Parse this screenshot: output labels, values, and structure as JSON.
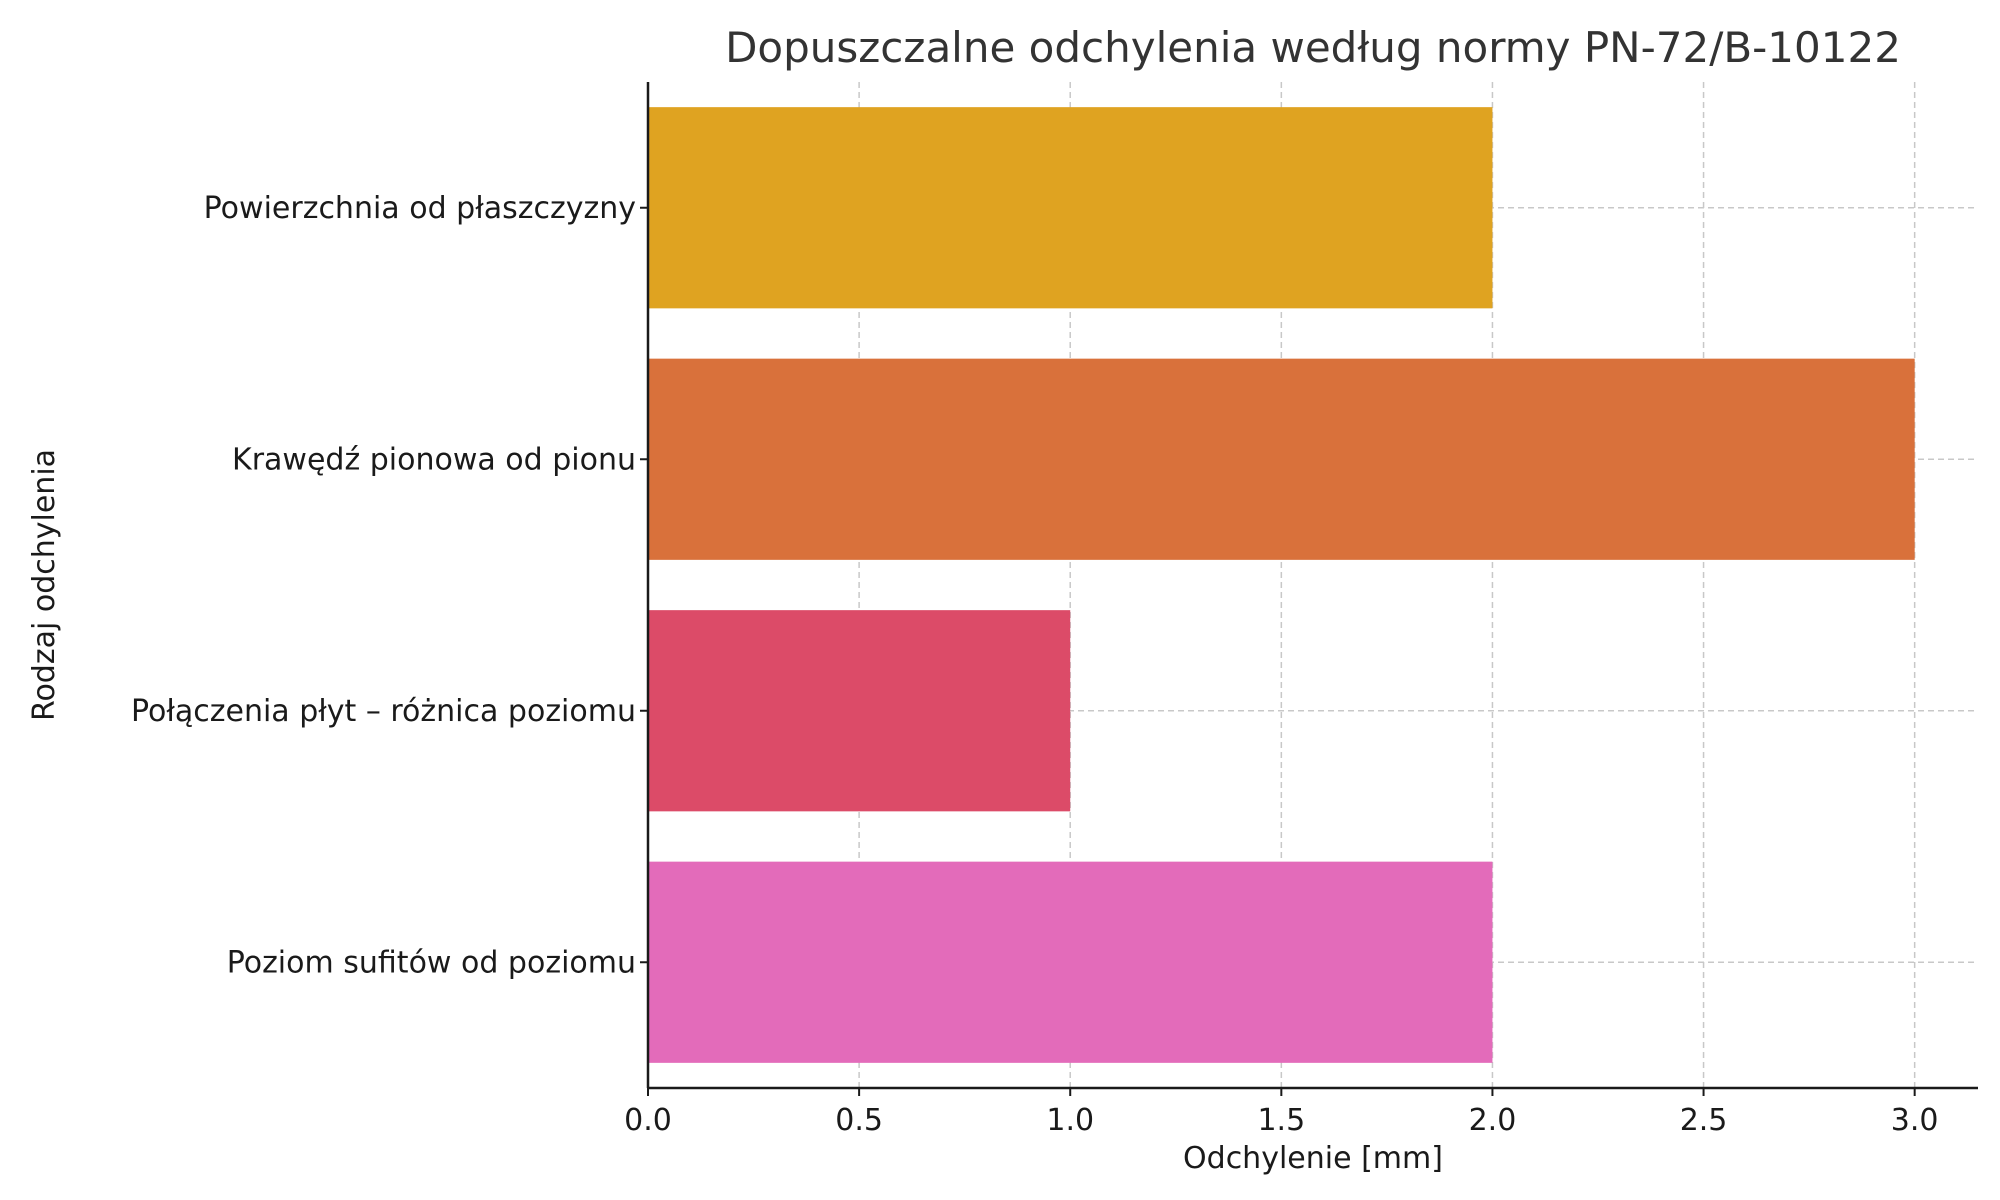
{
  "chart_data": {
    "type": "bar",
    "orientation": "horizontal",
    "title": "Dopuszczalne odchylenia według normy PN-72/B-10122",
    "xlabel": "Odchylenie [mm]",
    "ylabel": "Rodzaj odchylenia",
    "categories": [
      "Powierzchnia od płaszczyzny",
      "Krawędź pionowa od pionu",
      "Połączenia płyt – różnica poziomu",
      "Poziom sufitów od poziomu"
    ],
    "values": [
      2.0,
      3.0,
      1.0,
      2.0
    ],
    "colors": [
      "#DFA321",
      "#D9713B",
      "#DC4B68",
      "#E36BBA"
    ],
    "xlim": [
      0,
      3.15
    ],
    "xticks": [
      "0.0",
      "0.5",
      "1.0",
      "1.5",
      "2.0",
      "2.5",
      "3.0"
    ],
    "grid": true,
    "legend": "none"
  }
}
